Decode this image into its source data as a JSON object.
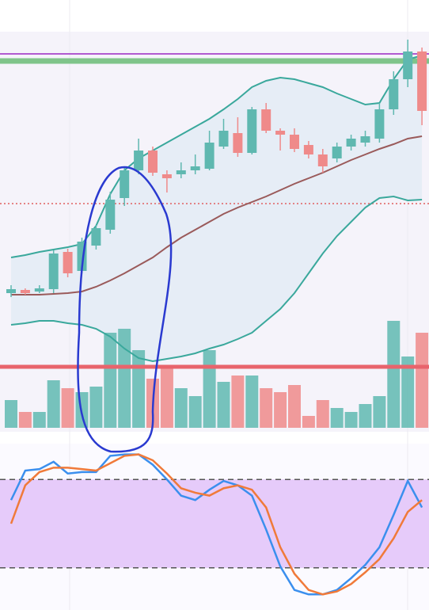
{
  "chart_data": {
    "type": "candlestick",
    "ylim": [
      -130,
      380
    ],
    "open": [
      50,
      54,
      52,
      55,
      102,
      78,
      110,
      130,
      170,
      205,
      230,
      200,
      200,
      205,
      207,
      235,
      252,
      227,
      282,
      255,
      250,
      237,
      225,
      220,
      235,
      240,
      245,
      282,
      320,
      355
    ],
    "high": [
      60,
      56,
      60,
      104,
      106,
      120,
      136,
      178,
      210,
      245,
      235,
      205,
      215,
      225,
      255,
      270,
      272,
      285,
      290,
      258,
      258,
      242,
      232,
      240,
      250,
      255,
      290,
      330,
      370,
      360
    ],
    "low": [
      45,
      48,
      50,
      50,
      70,
      75,
      105,
      125,
      160,
      200,
      198,
      177,
      195,
      200,
      205,
      232,
      222,
      225,
      252,
      230,
      228,
      220,
      202,
      215,
      230,
      235,
      240,
      275,
      310,
      262
    ],
    "close": [
      55,
      50,
      56,
      100,
      75,
      115,
      132,
      168,
      205,
      230,
      202,
      195,
      205,
      210,
      240,
      255,
      227,
      282,
      255,
      250,
      232,
      225,
      210,
      235,
      245,
      248,
      282,
      320,
      355,
      280
    ],
    "up_color": "#5fb8b0",
    "down_color": "#ef8a8a",
    "levels": [
      {
        "value": 352,
        "color": "#b05ad0"
      },
      {
        "value": 343,
        "color": "#7fc48a"
      },
      {
        "value": 163,
        "color": "#e06060"
      }
    ],
    "bands": {
      "upper": [
        95,
        98,
        102,
        105,
        108,
        112,
        135,
        175,
        205,
        220,
        230,
        240,
        250,
        260,
        270,
        282,
        295,
        310,
        318,
        322,
        320,
        315,
        310,
        302,
        295,
        288,
        290,
        320,
        345,
        350
      ],
      "middle": [
        48,
        48,
        48,
        49,
        50,
        52,
        58,
        66,
        75,
        85,
        95,
        108,
        120,
        130,
        140,
        150,
        158,
        165,
        172,
        180,
        188,
        195,
        202,
        210,
        218,
        225,
        232,
        238,
        245,
        248
      ],
      "lower": [
        10,
        12,
        15,
        15,
        12,
        10,
        5,
        -5,
        -20,
        -32,
        -36,
        -33,
        -30,
        -26,
        -20,
        -15,
        -8,
        0,
        15,
        30,
        50,
        75,
        100,
        122,
        140,
        158,
        170,
        172,
        167,
        168
      ],
      "color": "#3aa89c",
      "middle_color": "#9a5a5a",
      "fill": "#e6edf6"
    },
    "volume": {
      "values": [
        35,
        20,
        20,
        60,
        50,
        45,
        52,
        120,
        125,
        98,
        62,
        78,
        50,
        40,
        98,
        58,
        66,
        66,
        50,
        45,
        54,
        15,
        35,
        25,
        20,
        30,
        40,
        135,
        90,
        120
      ],
      "ylim": [
        0,
        140
      ],
      "level": 77,
      "level_color": "#e8646c"
    },
    "stochastic": {
      "ylim": [
        0,
        100
      ],
      "levels": [
        80,
        20
      ],
      "band_color": "#e6cbfa",
      "series": [
        {
          "color": "#3b8fee",
          "values": [
            66,
            86,
            87,
            92,
            84,
            85,
            85,
            96,
            97,
            97,
            90,
            80,
            69,
            66,
            73,
            79,
            76,
            69,
            46,
            21,
            5,
            2,
            2,
            5,
            13,
            22,
            34,
            56,
            79,
            61
          ]
        },
        {
          "color": "#f07a3a",
          "values": [
            50,
            76,
            85,
            88,
            88,
            87,
            86,
            91,
            96,
            97,
            93,
            84,
            74,
            71,
            69,
            74,
            76,
            73,
            61,
            34,
            16,
            5,
            2,
            4,
            9,
            17,
            26,
            40,
            58,
            66
          ]
        }
      ]
    }
  }
}
